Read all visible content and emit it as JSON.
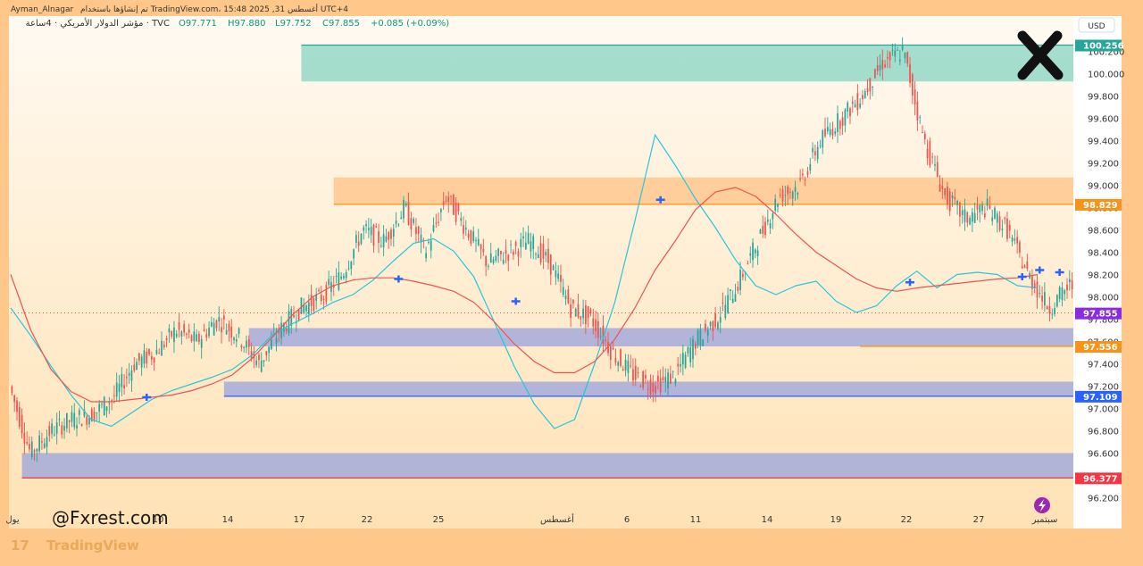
{
  "header": {
    "author": "Ayman_Alnagar",
    "published": "تم إنشاؤها باستخدام TradingView.com، 15:48 2025 ,31 أغسطس UTC+4",
    "symbol": "مؤشر الدولار الأمريكي · 4ساعة · TVC",
    "open": "O97.771",
    "high": "H97.880",
    "low": "L97.752",
    "close": "C97.855",
    "change": "+0.085 (+0.09%)"
  },
  "watermark": "@Fxrest.com",
  "footer_logo": "TradingView",
  "currency": "USD",
  "colors": {
    "up": "#26a69a",
    "down": "#ef5350",
    "ema_fast": "#26c6da",
    "ema_slow": "#ef5350",
    "zone_green": "#8fd6c6",
    "zone_orange": "#ffc48a",
    "zone_blue": "#9fa8dc"
  },
  "chart_data": {
    "type": "candlestick",
    "symbol": "TVC:DXY",
    "timeframe": "4h",
    "ylim": [
      96.1,
      100.5
    ],
    "y_ticks": [
      "96.200",
      "96.400",
      "96.600",
      "96.800",
      "97.000",
      "97.200",
      "97.400",
      "97.600",
      "97.800",
      "98.000",
      "98.200",
      "98.400",
      "98.600",
      "98.800",
      "99.000",
      "99.200",
      "99.400",
      "99.600",
      "99.800",
      "100.000",
      "100.200"
    ],
    "x_ticks": [
      "يول",
      "10",
      "14",
      "17",
      "22",
      "25",
      "أغسطس",
      "6",
      "11",
      "14",
      "19",
      "22",
      "27",
      "سبتمبر"
    ],
    "price_labels": [
      {
        "text": "100.256",
        "value": 100.256,
        "color": "#26a69a"
      },
      {
        "text": "98.829",
        "value": 98.829,
        "color": "#f7931a"
      },
      {
        "text": "97.855",
        "value": 97.855,
        "color": "#8a2be2"
      },
      {
        "text": "97.556",
        "value": 97.556,
        "color": "#f7931a"
      },
      {
        "text": "97.109",
        "value": 97.109,
        "color": "#2962ff"
      },
      {
        "text": "96.377",
        "value": 96.377,
        "color": "#f23645"
      }
    ],
    "zones": [
      {
        "name": "supply-zone-top",
        "from_bar": 116,
        "to_bar": "end",
        "low": 99.93,
        "high": 100.256,
        "color": "#8fd6c6"
      },
      {
        "name": "supply-zone-mid",
        "from_bar": 129,
        "to_bar": "end",
        "low": 98.829,
        "high": 99.07,
        "color": "#ffc48a"
      },
      {
        "name": "demand-zone-1",
        "from_bar": 95,
        "to_bar": "end",
        "low": 97.556,
        "high": 97.72,
        "color": "#9fa8dc"
      },
      {
        "name": "demand-zone-2",
        "from_bar": 85,
        "to_bar": "end",
        "low": 97.109,
        "high": 97.24,
        "color": "#9fa8dc"
      },
      {
        "name": "demand-zone-3",
        "from_bar": 4,
        "to_bar": "end",
        "low": 96.377,
        "high": 96.6,
        "color": "#9fa8dc"
      }
    ],
    "series": [
      {
        "name": "EMA fast",
        "values": [
          97.9,
          97.65,
          97.38,
          97.12,
          96.9,
          96.84,
          96.96,
          97.08,
          97.16,
          97.22,
          97.28,
          97.35,
          97.48,
          97.66,
          97.76,
          97.85,
          97.95,
          98.02,
          98.15,
          98.32,
          98.48,
          98.52,
          98.41,
          98.18,
          97.78,
          97.38,
          97.04,
          96.82,
          96.9,
          97.4,
          97.95,
          98.68,
          99.45,
          99.18,
          98.88,
          98.62,
          98.33,
          98.1,
          98.02,
          98.1,
          98.14,
          97.96,
          97.86,
          97.92,
          98.1,
          98.23,
          98.08,
          98.2,
          98.22,
          98.2,
          98.1,
          98.08
        ]
      },
      {
        "name": "EMA slow",
        "values": [
          98.2,
          97.7,
          97.35,
          97.15,
          97.06,
          97.06,
          97.08,
          97.1,
          97.12,
          97.16,
          97.22,
          97.3,
          97.45,
          97.64,
          97.84,
          98.0,
          98.1,
          98.15,
          98.17,
          98.17,
          98.14,
          98.1,
          98.05,
          97.95,
          97.78,
          97.58,
          97.42,
          97.32,
          97.32,
          97.42,
          97.62,
          97.9,
          98.24,
          98.5,
          98.78,
          98.94,
          98.98,
          98.9,
          98.74,
          98.56,
          98.4,
          98.28,
          98.16,
          98.08,
          98.05,
          98.08,
          98.1,
          98.12,
          98.14,
          98.16,
          98.17,
          98.2
        ]
      },
      {
        "name": "candles",
        "values": [
          97.2,
          96.6,
          96.8,
          96.9,
          96.95,
          97.1,
          97.4,
          97.5,
          97.7,
          97.6,
          97.8,
          97.65,
          97.4,
          97.7,
          97.9,
          98.0,
          98.2,
          98.6,
          98.5,
          98.8,
          98.4,
          98.9,
          98.6,
          98.3,
          98.4,
          98.5,
          98.3,
          97.9,
          97.8,
          97.5,
          97.3,
          97.2,
          97.3,
          97.6,
          97.8,
          98.1,
          98.5,
          98.9,
          99.0,
          99.4,
          99.6,
          99.8,
          100.1,
          100.2,
          99.4,
          98.9,
          98.7,
          98.8,
          98.6,
          98.2,
          97.9,
          98.1
        ]
      }
    ],
    "markers": [
      {
        "bar": 54,
        "value": 97.1
      },
      {
        "bar": 155,
        "value": 98.16
      },
      {
        "bar": 202,
        "value": 97.96
      },
      {
        "bar": 260,
        "value": 98.87
      },
      {
        "bar": 360,
        "value": 98.13
      },
      {
        "bar": 405,
        "value": 98.18
      },
      {
        "bar": 412,
        "value": 98.24
      },
      {
        "bar": 420,
        "value": 98.22
      }
    ]
  }
}
